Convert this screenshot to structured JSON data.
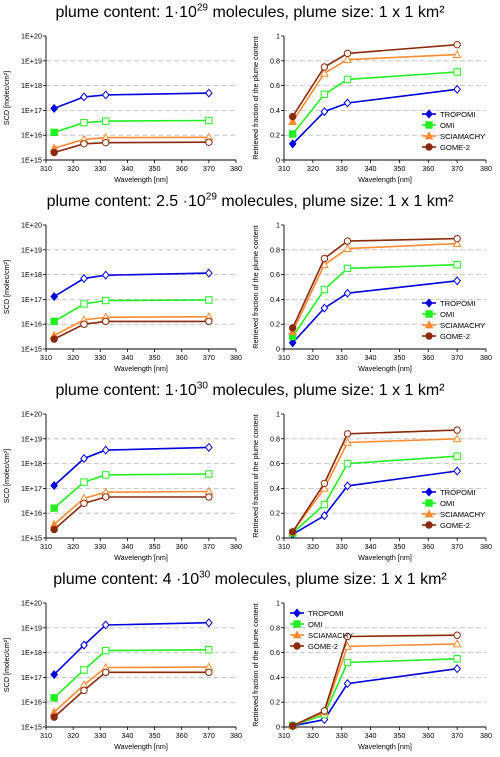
{
  "colors": {
    "TROPOMI": "#0000dd",
    "OMI": "#22ee22",
    "SCIAMACHY": "#ff8c33",
    "GOME-2": "#8b2a0a",
    "grid": "#bbbbbb"
  },
  "panels": [
    {
      "title_pre": "plume content: 1·10",
      "title_exp": "29",
      "title_post": " molecules, plume size: 1 x 1 km²"
    },
    {
      "title_pre": "plume content: 2.5 ·10",
      "title_exp": "29",
      "title_post": " molecules, plume size: 1 x 1 km²"
    },
    {
      "title_pre": "plume content: 1·10",
      "title_exp": "30",
      "title_post": " molecules, plume size: 1 x 1 km²"
    },
    {
      "title_pre": "plume content: 4 ·10",
      "title_exp": "30",
      "title_post": " molecules, plume size: 1 x 1 km²"
    }
  ],
  "chart_data": [
    {
      "type": "line",
      "panel": 0,
      "side": "left",
      "xlabel": "Wavelength [nm]",
      "ylabel": "SCD [molec/cm²]",
      "xlim": [
        310,
        380
      ],
      "xticks": [
        "310",
        "320",
        "330",
        "340",
        "350",
        "360",
        "370",
        "380"
      ],
      "yscale": "log",
      "ylim_exp": [
        15,
        20
      ],
      "yticks": [
        "1E+15",
        "1E+16",
        "1E+17",
        "1E+18",
        "1E+19",
        "1E+20"
      ],
      "x": [
        313,
        324,
        332,
        370
      ],
      "series": [
        {
          "name": "TROPOMI",
          "values": [
            1.2e+17,
            3.5e+17,
            4.2e+17,
            5e+17
          ]
        },
        {
          "name": "OMI",
          "values": [
            1.3e+16,
            3.2e+16,
            3.7e+16,
            3.9e+16
          ]
        },
        {
          "name": "SCIAMACHY",
          "values": [
            3000000000000000.0,
            6800000000000000.0,
            8000000000000000.0,
            8200000000000000.0
          ]
        },
        {
          "name": "GOME-2",
          "values": [
            2000000000000000.0,
            4500000000000000.0,
            5000000000000000.0,
            5200000000000000.0
          ]
        }
      ]
    },
    {
      "type": "line",
      "panel": 0,
      "side": "right",
      "xlabel": "Wavelength [nm]",
      "ylabel": "Retrieved fraction of the plume content",
      "xlim": [
        310,
        380
      ],
      "xticks": [
        "310",
        "320",
        "330",
        "340",
        "350",
        "360",
        "370",
        "380"
      ],
      "ylim": [
        0,
        1
      ],
      "yticks": [
        "0",
        "0.2",
        "0.4",
        "0.6",
        "0.8",
        "1"
      ],
      "legend": "bottom-right",
      "x": [
        313,
        324,
        332,
        370
      ],
      "series": [
        {
          "name": "TROPOMI",
          "values": [
            0.13,
            0.39,
            0.46,
            0.57
          ]
        },
        {
          "name": "OMI",
          "values": [
            0.21,
            0.53,
            0.65,
            0.71
          ]
        },
        {
          "name": "SCIAMACHY",
          "values": [
            0.31,
            0.7,
            0.81,
            0.85
          ]
        },
        {
          "name": "GOME-2",
          "values": [
            0.35,
            0.75,
            0.86,
            0.93
          ]
        }
      ]
    },
    {
      "type": "line",
      "panel": 1,
      "side": "left",
      "xlabel": "Wavelength [nm]",
      "ylabel": "SCD [molec/cm²]",
      "xlim": [
        310,
        380
      ],
      "xticks": [
        "310",
        "320",
        "330",
        "340",
        "350",
        "360",
        "370",
        "380"
      ],
      "yscale": "log",
      "ylim_exp": [
        15,
        20
      ],
      "yticks": [
        "1E+15",
        "1E+16",
        "1E+17",
        "1E+18",
        "1E+19",
        "1E+20"
      ],
      "x": [
        313,
        324,
        332,
        370
      ],
      "series": [
        {
          "name": "TROPOMI",
          "values": [
            1.3e+17,
            7e+17,
            9.5e+17,
            1.15e+18
          ]
        },
        {
          "name": "OMI",
          "values": [
            1.3e+16,
            6.5e+16,
            9e+16,
            9.5e+16
          ]
        },
        {
          "name": "SCIAMACHY",
          "values": [
            3500000000000000.0,
            1.5e+16,
            1.9e+16,
            2e+16
          ]
        },
        {
          "name": "GOME-2",
          "values": [
            2500000000000000.0,
            1e+16,
            1.3e+16,
            1.3e+16
          ]
        }
      ]
    },
    {
      "type": "line",
      "panel": 1,
      "side": "right",
      "xlabel": "Wavelength [nm]",
      "ylabel": "Retrieved fraction of the plume content",
      "xlim": [
        310,
        380
      ],
      "xticks": [
        "310",
        "320",
        "330",
        "340",
        "350",
        "360",
        "370",
        "380"
      ],
      "ylim": [
        0,
        1
      ],
      "yticks": [
        "0",
        "0.2",
        "0.4",
        "0.6",
        "0.8",
        "1"
      ],
      "legend": "bottom-right",
      "x": [
        313,
        324,
        332,
        370
      ],
      "series": [
        {
          "name": "TROPOMI",
          "values": [
            0.05,
            0.33,
            0.45,
            0.55
          ]
        },
        {
          "name": "OMI",
          "values": [
            0.1,
            0.48,
            0.65,
            0.68
          ]
        },
        {
          "name": "SCIAMACHY",
          "values": [
            0.14,
            0.68,
            0.81,
            0.85
          ]
        },
        {
          "name": "GOME-2",
          "values": [
            0.17,
            0.73,
            0.87,
            0.89
          ]
        }
      ]
    },
    {
      "type": "line",
      "panel": 2,
      "side": "left",
      "xlabel": "Wavelength [nm]",
      "ylabel": "SCD [molec/cm²]",
      "xlim": [
        310,
        380
      ],
      "xticks": [
        "310",
        "320",
        "330",
        "340",
        "350",
        "360",
        "370",
        "380"
      ],
      "yscale": "log",
      "ylim_exp": [
        15,
        20
      ],
      "yticks": [
        "1E+15",
        "1E+16",
        "1E+17",
        "1E+18",
        "1E+19",
        "1E+20"
      ],
      "x": [
        313,
        324,
        332,
        370
      ],
      "series": [
        {
          "name": "TROPOMI",
          "values": [
            1.3e+17,
            1.6e+18,
            3.5e+18,
            4.5e+18
          ]
        },
        {
          "name": "OMI",
          "values": [
            1.6e+16,
            1.8e+17,
            3.5e+17,
            3.8e+17
          ]
        },
        {
          "name": "SCIAMACHY",
          "values": [
            3500000000000000.0,
            4e+16,
            7e+16,
            7.5e+16
          ]
        },
        {
          "name": "GOME-2",
          "values": [
            2200000000000000.0,
            2.5e+16,
            4.5e+16,
            4.5e+16
          ]
        }
      ]
    },
    {
      "type": "line",
      "panel": 2,
      "side": "right",
      "xlabel": "Wavelength [nm]",
      "ylabel": "Retrieved fraction of the plume content",
      "xlim": [
        310,
        380
      ],
      "xticks": [
        "310",
        "320",
        "330",
        "340",
        "350",
        "360",
        "370",
        "380"
      ],
      "ylim": [
        0,
        1
      ],
      "yticks": [
        "0",
        "0.2",
        "0.4",
        "0.6",
        "0.8",
        "1"
      ],
      "legend": "bottom-right",
      "x": [
        313,
        324,
        332,
        370
      ],
      "series": [
        {
          "name": "TROPOMI",
          "values": [
            0.03,
            0.18,
            0.42,
            0.54
          ]
        },
        {
          "name": "OMI",
          "values": [
            0.04,
            0.27,
            0.6,
            0.66
          ]
        },
        {
          "name": "SCIAMACHY",
          "values": [
            0.05,
            0.4,
            0.77,
            0.8
          ]
        },
        {
          "name": "GOME-2",
          "values": [
            0.05,
            0.44,
            0.84,
            0.87
          ]
        }
      ]
    },
    {
      "type": "line",
      "panel": 3,
      "side": "left",
      "xlabel": "Wavelength [nm]",
      "ylabel": "SCD [molec/cm²]",
      "xlim": [
        310,
        380
      ],
      "xticks": [
        "310",
        "320",
        "330",
        "340",
        "350",
        "360",
        "370",
        "380"
      ],
      "yscale": "log",
      "ylim_exp": [
        15,
        20
      ],
      "yticks": [
        "1E+15",
        "1E+16",
        "1E+17",
        "1E+18",
        "1E+19",
        "1E+20"
      ],
      "x": [
        313,
        324,
        332,
        370
      ],
      "series": [
        {
          "name": "TROPOMI",
          "values": [
            1.3e+17,
            2e+18,
            1.3e+19,
            1.6e+19
          ]
        },
        {
          "name": "OMI",
          "values": [
            1.5e+16,
            2e+17,
            1.2e+18,
            1.3e+18
          ]
        },
        {
          "name": "SCIAMACHY",
          "values": [
            4000000000000000.0,
            5e+16,
            2.5e+17,
            2.6e+17
          ]
        },
        {
          "name": "GOME-2",
          "values": [
            2500000000000000.0,
            3e+16,
            1.6e+17,
            1.6e+17
          ]
        }
      ]
    },
    {
      "type": "line",
      "panel": 3,
      "side": "right",
      "xlabel": "Wavelength [nm]",
      "ylabel": "Retrieved fraction of the plume content",
      "xlim": [
        310,
        380
      ],
      "xticks": [
        "310",
        "320",
        "330",
        "340",
        "350",
        "360",
        "370",
        "380"
      ],
      "ylim": [
        0,
        1
      ],
      "yticks": [
        "0",
        "0.2",
        "0.4",
        "0.6",
        "0.8",
        "1"
      ],
      "legend": "top-left",
      "x": [
        313,
        324,
        332,
        370
      ],
      "series": [
        {
          "name": "TROPOMI",
          "values": [
            0.01,
            0.06,
            0.35,
            0.47
          ]
        },
        {
          "name": "OMI",
          "values": [
            0.01,
            0.1,
            0.52,
            0.55
          ]
        },
        {
          "name": "SCIAMACHY",
          "values": [
            0.01,
            0.12,
            0.65,
            0.67
          ]
        },
        {
          "name": "GOME-2",
          "values": [
            0.01,
            0.13,
            0.73,
            0.74
          ]
        }
      ]
    }
  ]
}
